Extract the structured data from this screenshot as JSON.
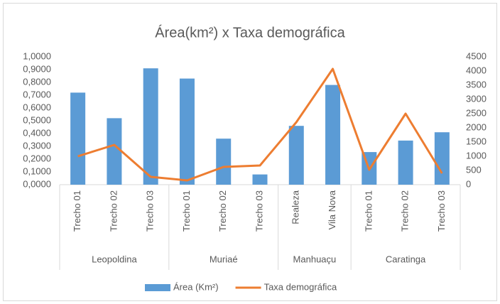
{
  "chart_data": {
    "type": "bar_line",
    "title": "Área(km²) x Taxa demográfica",
    "category_groups": [
      {
        "name": "Leopoldina",
        "categories": [
          "Trecho 01",
          "Trecho 02",
          "Trecho 03"
        ]
      },
      {
        "name": "Muriaé",
        "categories": [
          "Trecho 01",
          "Trecho 02",
          "Trecho 03"
        ]
      },
      {
        "name": "Manhuaçu",
        "categories": [
          "Realeza",
          "Vila Nova"
        ]
      },
      {
        "name": "Caratinga",
        "categories": [
          "Trecho 01",
          "Trecho 02",
          "Trecho 03"
        ]
      }
    ],
    "series": [
      {
        "name": "Área (Km²)",
        "type": "bar",
        "color": "#5b9bd5",
        "values": [
          0.72,
          0.52,
          0.91,
          0.83,
          0.36,
          0.08,
          0.46,
          0.78,
          0.255,
          0.345,
          0.41
        ]
      },
      {
        "name": "Taxa demográfica",
        "type": "line",
        "axis": "y2",
        "color": "#ed7d31",
        "values": [
          1000,
          1400,
          275,
          150,
          625,
          675,
          2200,
          4075,
          525,
          2500,
          400
        ]
      }
    ],
    "ylim": [
      0,
      1
    ],
    "yticks": [
      {
        "value": 0,
        "label": "0,0000"
      },
      {
        "value": 0.1,
        "label": "0,1000"
      },
      {
        "value": 0.2,
        "label": "0,2000"
      },
      {
        "value": 0.3,
        "label": "0,3000"
      },
      {
        "value": 0.4,
        "label": "0,4000"
      },
      {
        "value": 0.5,
        "label": "0,5000"
      },
      {
        "value": 0.6,
        "label": "0,6000"
      },
      {
        "value": 0.7,
        "label": "0,7000"
      },
      {
        "value": 0.8,
        "label": "0,8000"
      },
      {
        "value": 0.9,
        "label": "0,9000"
      },
      {
        "value": 1,
        "label": "1,0000"
      }
    ],
    "y2lim": [
      0,
      4500
    ],
    "y2ticks": [
      0,
      500,
      1000,
      1500,
      2000,
      2500,
      3000,
      3500,
      4000,
      4500
    ],
    "grid": false,
    "legend": "bottom"
  }
}
